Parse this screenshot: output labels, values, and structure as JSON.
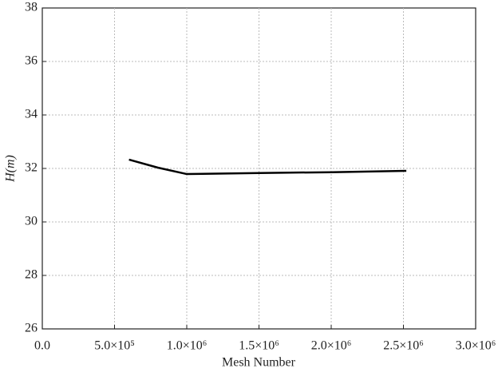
{
  "chart_data": {
    "type": "line",
    "x_label": "Mesh Number",
    "y_label": "H(m)",
    "x": [
      600000,
      800000,
      1000000,
      1500000,
      2000000,
      2520000
    ],
    "series": [
      {
        "name": "H",
        "color": "#000000",
        "values": [
          32.33,
          32.03,
          31.79,
          31.83,
          31.86,
          31.91
        ]
      }
    ],
    "xlim": [
      0,
      3000000
    ],
    "xticks": [
      {
        "value": 0,
        "label": "0.0"
      },
      {
        "value": 500000,
        "label": "5.0×10⁵"
      },
      {
        "value": 1000000,
        "label": "1.0×10⁶"
      },
      {
        "value": 1500000,
        "label": "1.5×10⁶"
      },
      {
        "value": 2000000,
        "label": "2.0×10⁶"
      },
      {
        "value": 2500000,
        "label": "2.5×10⁶"
      },
      {
        "value": 3000000,
        "label": "3.0×10⁶"
      }
    ],
    "ylim": [
      26,
      38
    ],
    "yticks": [
      26,
      28,
      30,
      32,
      34,
      36,
      38
    ],
    "grid": true
  }
}
